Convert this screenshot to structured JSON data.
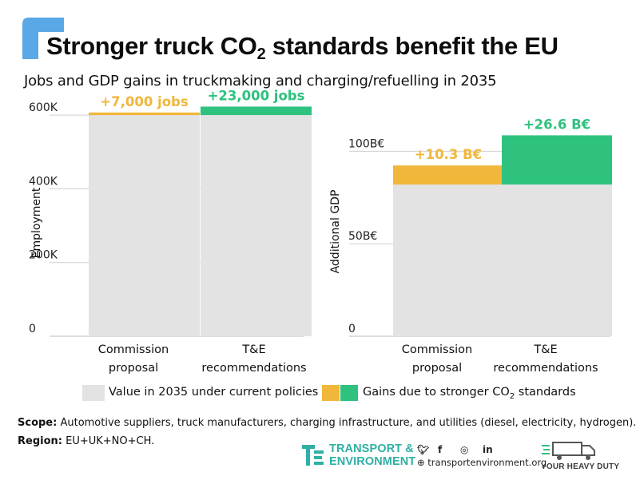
{
  "title": "Stronger truck CO",
  "title_sub": "2",
  "title_suffix": " standards benefit the EU",
  "subtitle": "Jobs and GDP gains in truckmaking and charging/refuelling in 2035",
  "colors": {
    "accent_blue": "#5aa8e6",
    "base": "#e3e3e3",
    "gain_commission": "#f0b73a",
    "gain_te": "#2ec27e"
  },
  "chart_data": [
    {
      "type": "bar",
      "stacked": true,
      "title": "",
      "ylabel": "Employment",
      "ylim": [
        0,
        650000
      ],
      "y_ticks": [
        0,
        200000,
        400000,
        600000
      ],
      "y_tick_labels": [
        "0",
        "200K",
        "400K",
        "600K"
      ],
      "grid": true,
      "categories": [
        [
          "Commission",
          "proposal"
        ],
        [
          "T&E",
          "recommendations"
        ]
      ],
      "series": [
        {
          "name": "Value in 2035 under current policies",
          "values": [
            600000,
            600000
          ]
        },
        {
          "name": "Gains due to stronger CO2 standards",
          "values": [
            7000,
            23000
          ]
        }
      ],
      "labels": [
        "+7,000 jobs",
        "+23,000 jobs"
      ]
    },
    {
      "type": "bar",
      "stacked": true,
      "title": "",
      "ylabel": "Additional GDP",
      "ylim": [
        0,
        120
      ],
      "y_ticks": [
        0,
        50,
        100
      ],
      "y_tick_labels": [
        "0",
        "50B€",
        "100B€"
      ],
      "grid": true,
      "categories": [
        [
          "Commission",
          "proposal"
        ],
        [
          "T&E",
          "recommendations"
        ]
      ],
      "series": [
        {
          "name": "Value in 2035 under current policies",
          "values": [
            82,
            82
          ]
        },
        {
          "name": "Gains due to stronger CO2 standards",
          "values": [
            10.3,
            26.6
          ]
        }
      ],
      "labels": [
        "+10.3 B€",
        "+26.6 B€"
      ]
    }
  ],
  "legend": {
    "base_label": "Value in 2035 under current policies",
    "gain_label": "Gains due to stronger CO",
    "gain_sub": "2",
    "gain_suffix": " standards"
  },
  "footer": {
    "scope_label": "Scope:",
    "scope_text": " Automotive suppliers, truck manufacturers, charging infrastructure, and utilities (diesel, electricity, hydrogen).",
    "region_label": "Region:",
    "region_text": " EU+UK+NO+CH."
  },
  "branding": {
    "org_line1": "TRANSPORT &",
    "org_line2": "ENVIRONMENT",
    "website": "transportenvironment.org",
    "campaign": "YOUR HEAVY DUTY",
    "social_icons": [
      "twitter-icon",
      "facebook-icon",
      "instagram-icon",
      "linkedin-icon"
    ]
  }
}
